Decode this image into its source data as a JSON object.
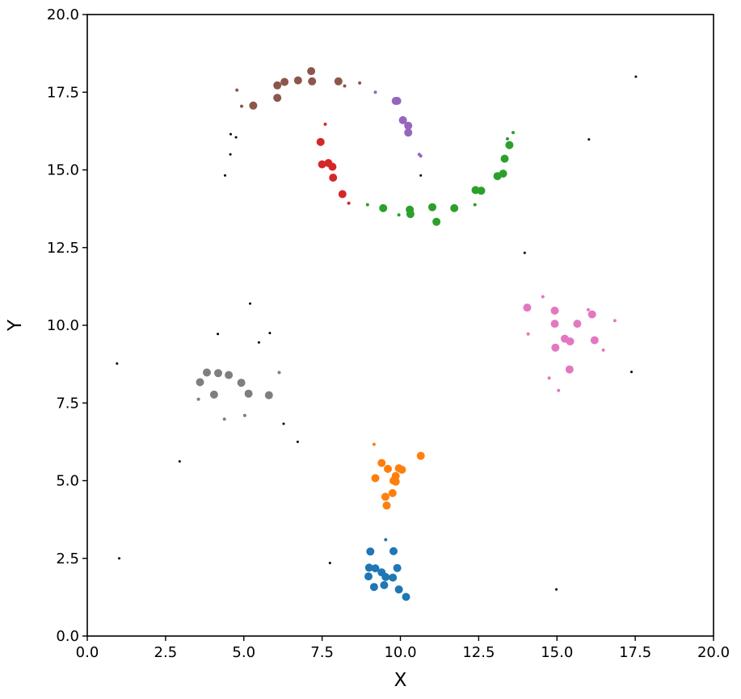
{
  "chart_data": {
    "type": "scatter",
    "title": "",
    "xlabel": "X",
    "ylabel": "Y",
    "xlim": [
      0,
      20
    ],
    "ylim": [
      0,
      20
    ],
    "xticks": [
      "0.0",
      "2.5",
      "5.0",
      "7.5",
      "10.0",
      "12.5",
      "15.0",
      "17.5",
      "20.0"
    ],
    "yticks": [
      "0.0",
      "2.5",
      "5.0",
      "7.5",
      "10.0",
      "12.5",
      "15.0",
      "17.5",
      "20.0"
    ],
    "grid": false,
    "legend": "none",
    "series": [
      {
        "color": "#1f77b4",
        "points": [
          [
            9.04,
            2.72,
            "core"
          ],
          [
            9.78,
            2.73,
            "core"
          ],
          [
            9.0,
            2.2,
            "core"
          ],
          [
            9.2,
            2.18,
            "core"
          ],
          [
            9.4,
            2.05,
            "core"
          ],
          [
            9.9,
            2.19,
            "core"
          ],
          [
            8.98,
            1.92,
            "core"
          ],
          [
            9.53,
            1.9,
            "core"
          ],
          [
            9.76,
            1.88,
            "core"
          ],
          [
            9.16,
            1.58,
            "core"
          ],
          [
            9.48,
            1.64,
            "core"
          ],
          [
            9.95,
            1.5,
            "core"
          ],
          [
            10.18,
            1.26,
            "core"
          ],
          [
            9.53,
            3.1,
            "border"
          ]
        ]
      },
      {
        "color": "#ff7f0e",
        "points": [
          [
            10.65,
            5.8,
            "core"
          ],
          [
            9.4,
            5.57,
            "core"
          ],
          [
            9.6,
            5.38,
            "core"
          ],
          [
            9.95,
            5.4,
            "core"
          ],
          [
            10.05,
            5.35,
            "core"
          ],
          [
            9.85,
            5.15,
            "core"
          ],
          [
            9.2,
            5.08,
            "core"
          ],
          [
            9.78,
            5.0,
            "core"
          ],
          [
            9.85,
            4.97,
            "core"
          ],
          [
            9.75,
            4.6,
            "core"
          ],
          [
            9.52,
            4.48,
            "core"
          ],
          [
            9.56,
            4.2,
            "core"
          ],
          [
            9.16,
            6.17,
            "border"
          ]
        ]
      },
      {
        "color": "#2ca02c",
        "points": [
          [
            13.48,
            15.8,
            "core"
          ],
          [
            13.33,
            15.36,
            "core"
          ],
          [
            13.1,
            14.8,
            "core"
          ],
          [
            13.28,
            14.88,
            "core"
          ],
          [
            12.4,
            14.35,
            "core"
          ],
          [
            12.58,
            14.33,
            "core"
          ],
          [
            9.45,
            13.77,
            "core"
          ],
          [
            10.3,
            13.72,
            "core"
          ],
          [
            10.32,
            13.58,
            "core"
          ],
          [
            11.02,
            13.8,
            "core"
          ],
          [
            11.72,
            13.77,
            "core"
          ],
          [
            11.15,
            13.33,
            "core"
          ],
          [
            13.6,
            16.2,
            "border"
          ],
          [
            13.42,
            16.0,
            "border"
          ],
          [
            12.38,
            13.88,
            "border"
          ],
          [
            8.95,
            13.88,
            "border"
          ],
          [
            9.95,
            13.55,
            "border"
          ]
        ]
      },
      {
        "color": "#d62728",
        "points": [
          [
            7.45,
            15.9,
            "core"
          ],
          [
            7.5,
            15.18,
            "core"
          ],
          [
            7.7,
            15.22,
            "core"
          ],
          [
            7.83,
            15.1,
            "core"
          ],
          [
            7.85,
            14.75,
            "core"
          ],
          [
            8.15,
            14.22,
            "core"
          ],
          [
            7.6,
            16.47,
            "border"
          ],
          [
            8.35,
            13.93,
            "border"
          ]
        ]
      },
      {
        "color": "#9467bd",
        "points": [
          [
            9.85,
            17.22,
            "core"
          ],
          [
            9.9,
            17.22,
            "core"
          ],
          [
            10.08,
            16.6,
            "core"
          ],
          [
            10.25,
            16.42,
            "core"
          ],
          [
            10.25,
            16.2,
            "core"
          ],
          [
            9.2,
            17.5,
            "border"
          ],
          [
            10.6,
            15.5,
            "border"
          ],
          [
            10.65,
            15.45,
            "border"
          ]
        ]
      },
      {
        "color": "#8c564b",
        "points": [
          [
            7.15,
            18.18,
            "core"
          ],
          [
            6.73,
            17.88,
            "core"
          ],
          [
            6.3,
            17.83,
            "core"
          ],
          [
            7.18,
            17.85,
            "core"
          ],
          [
            8.02,
            17.85,
            "core"
          ],
          [
            6.07,
            17.72,
            "core"
          ],
          [
            6.07,
            17.32,
            "core"
          ],
          [
            5.3,
            17.07,
            "core"
          ],
          [
            4.78,
            17.57,
            "border"
          ],
          [
            4.93,
            17.05,
            "border"
          ],
          [
            8.22,
            17.7,
            "border"
          ],
          [
            8.7,
            17.8,
            "border"
          ]
        ]
      },
      {
        "color": "#e377c2",
        "points": [
          [
            14.05,
            10.57,
            "core"
          ],
          [
            14.93,
            10.47,
            "core"
          ],
          [
            16.12,
            10.35,
            "core"
          ],
          [
            14.93,
            10.05,
            "core"
          ],
          [
            15.65,
            10.05,
            "core"
          ],
          [
            15.25,
            9.57,
            "core"
          ],
          [
            15.42,
            9.48,
            "core"
          ],
          [
            16.2,
            9.52,
            "core"
          ],
          [
            14.95,
            9.28,
            "core"
          ],
          [
            15.4,
            8.58,
            "core"
          ],
          [
            14.55,
            10.92,
            "border"
          ],
          [
            16.0,
            10.5,
            "border"
          ],
          [
            16.85,
            10.15,
            "border"
          ],
          [
            14.08,
            9.72,
            "border"
          ],
          [
            16.48,
            9.2,
            "border"
          ],
          [
            14.75,
            8.3,
            "border"
          ],
          [
            15.05,
            7.9,
            "border"
          ]
        ]
      },
      {
        "color": "#7f7f7f",
        "points": [
          [
            3.82,
            8.48,
            "core"
          ],
          [
            4.18,
            8.46,
            "core"
          ],
          [
            4.52,
            8.4,
            "core"
          ],
          [
            3.6,
            8.17,
            "core"
          ],
          [
            4.92,
            8.15,
            "core"
          ],
          [
            4.05,
            7.77,
            "core"
          ],
          [
            5.15,
            7.8,
            "core"
          ],
          [
            5.8,
            7.75,
            "core"
          ],
          [
            6.13,
            8.48,
            "border"
          ],
          [
            3.55,
            7.62,
            "border"
          ],
          [
            4.38,
            6.98,
            "border"
          ],
          [
            5.03,
            7.1,
            "border"
          ]
        ]
      },
      {
        "color": "#000000",
        "points": [
          [
            17.52,
            18.0,
            "noise"
          ],
          [
            16.02,
            15.98,
            "noise"
          ],
          [
            4.58,
            16.15,
            "noise"
          ],
          [
            4.75,
            16.05,
            "noise"
          ],
          [
            4.57,
            15.5,
            "noise"
          ],
          [
            4.4,
            14.82,
            "noise"
          ],
          [
            10.65,
            14.82,
            "noise"
          ],
          [
            13.97,
            12.33,
            "noise"
          ],
          [
            5.2,
            10.7,
            "noise"
          ],
          [
            4.17,
            9.72,
            "noise"
          ],
          [
            5.83,
            9.75,
            "noise"
          ],
          [
            5.48,
            9.45,
            "noise"
          ],
          [
            0.95,
            8.77,
            "noise"
          ],
          [
            17.38,
            8.5,
            "noise"
          ],
          [
            6.27,
            6.83,
            "noise"
          ],
          [
            6.72,
            6.25,
            "noise"
          ],
          [
            2.95,
            5.62,
            "noise"
          ],
          [
            1.02,
            2.5,
            "noise"
          ],
          [
            7.75,
            2.35,
            "noise"
          ],
          [
            14.98,
            1.5,
            "noise"
          ]
        ]
      }
    ]
  }
}
